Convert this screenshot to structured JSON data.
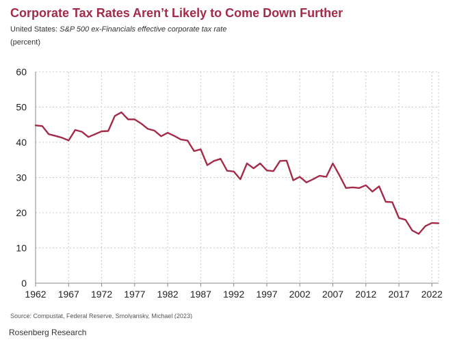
{
  "title": "Corporate Tax Rates Aren’t Likely to Come Down Further",
  "subtitle_prefix": "United States: ",
  "subtitle_desc": "S&P 500 ex-Financials effective corporate tax rate",
  "unit_label": "(percent)",
  "source": "Source: Compustat, Federal Reserve, Smolyansky, Michael (2023)",
  "credit": "Rosenberg Research",
  "colors": {
    "title": "#a32b48",
    "line": "#a32b48",
    "grid": "#c8c8c8",
    "axis": "#888888"
  },
  "chart_data": {
    "type": "line",
    "title": "Corporate Tax Rates Aren’t Likely to Come Down Further",
    "ylabel": "(percent)",
    "xlabel": "",
    "xlim": [
      1962,
      2023
    ],
    "ylim": [
      0,
      60
    ],
    "x_ticks": [
      1962,
      1967,
      1972,
      1977,
      1982,
      1987,
      1992,
      1997,
      2002,
      2007,
      2012,
      2017,
      2022
    ],
    "x_tick_labels": [
      "1962",
      "1967",
      "1972",
      "1977",
      "1982",
      "1987",
      "1992",
      "1997",
      "2002",
      "2007",
      "2012",
      "2017",
      "2022"
    ],
    "y_ticks": [
      0,
      10,
      20,
      30,
      40,
      50,
      60
    ],
    "y_tick_labels": [
      "0",
      "10",
      "20",
      "30",
      "40",
      "50",
      "60"
    ],
    "grid": true,
    "series": [
      {
        "x": [
          1962,
          1963,
          1964,
          1965,
          1966,
          1967,
          1968,
          1969,
          1970,
          1971,
          1972,
          1973,
          1974,
          1975,
          1976,
          1977,
          1978,
          1979,
          1980,
          1981,
          1982,
          1983,
          1984,
          1985,
          1986,
          1987,
          1988,
          1989,
          1990,
          1991,
          1992,
          1993,
          1994,
          1995,
          1996,
          1997,
          1998,
          1999,
          2000,
          2001,
          2002,
          2003,
          2004,
          2005,
          2006,
          2007,
          2008,
          2009,
          2010,
          2011,
          2012,
          2013,
          2014,
          2015,
          2016,
          2017,
          2018,
          2019,
          2020,
          2021,
          2022,
          2023
        ],
        "y": [
          44.8,
          44.6,
          42.3,
          41.8,
          41.3,
          40.5,
          43.5,
          43.0,
          41.5,
          42.3,
          43.1,
          43.2,
          47.5,
          48.5,
          46.5,
          46.5,
          45.3,
          43.8,
          43.3,
          41.7,
          42.7,
          41.8,
          40.8,
          40.5,
          37.5,
          38.0,
          33.5,
          34.7,
          35.3,
          31.9,
          31.7,
          29.5,
          34.0,
          32.6,
          34.0,
          32.0,
          31.8,
          34.7,
          34.8,
          29.2,
          30.2,
          28.6,
          29.5,
          30.5,
          30.2,
          34.0,
          30.6,
          27.0,
          27.2,
          27.0,
          27.8,
          26.0,
          27.5,
          23.1,
          23.0,
          18.5,
          18.0,
          15.0,
          14.0,
          16.2,
          17.1,
          17.0
        ]
      }
    ]
  }
}
